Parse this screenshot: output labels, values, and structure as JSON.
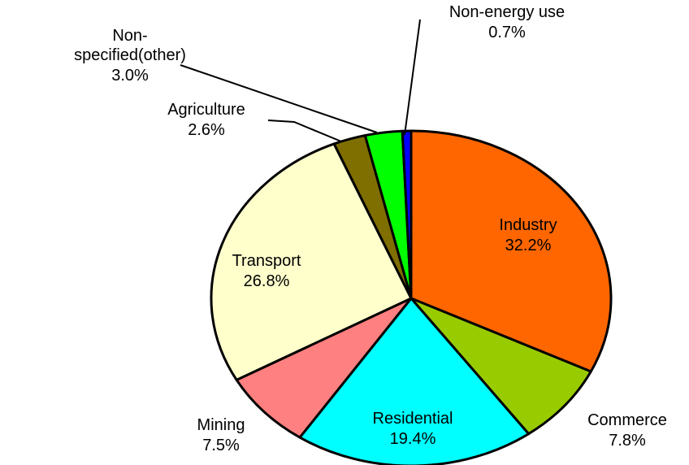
{
  "chart_data": {
    "type": "pie",
    "categories": [
      "Industry",
      "Commerce",
      "Residential",
      "Mining",
      "Transport",
      "Agriculture",
      "Non-specified(other)",
      "Non-energy use"
    ],
    "values": [
      32.2,
      7.8,
      19.4,
      7.5,
      26.8,
      2.6,
      3.0,
      0.7
    ],
    "value_labels": [
      "32.2%",
      "7.8%",
      "19.4%",
      "7.5%",
      "26.8%",
      "2.6%",
      "3.0%",
      "0.7%"
    ],
    "colors": [
      "#ff6600",
      "#99cc00",
      "#00ffff",
      "#ff8080",
      "#ffffcc",
      "#7f6f00",
      "#00ff00",
      "#0000ff"
    ]
  }
}
